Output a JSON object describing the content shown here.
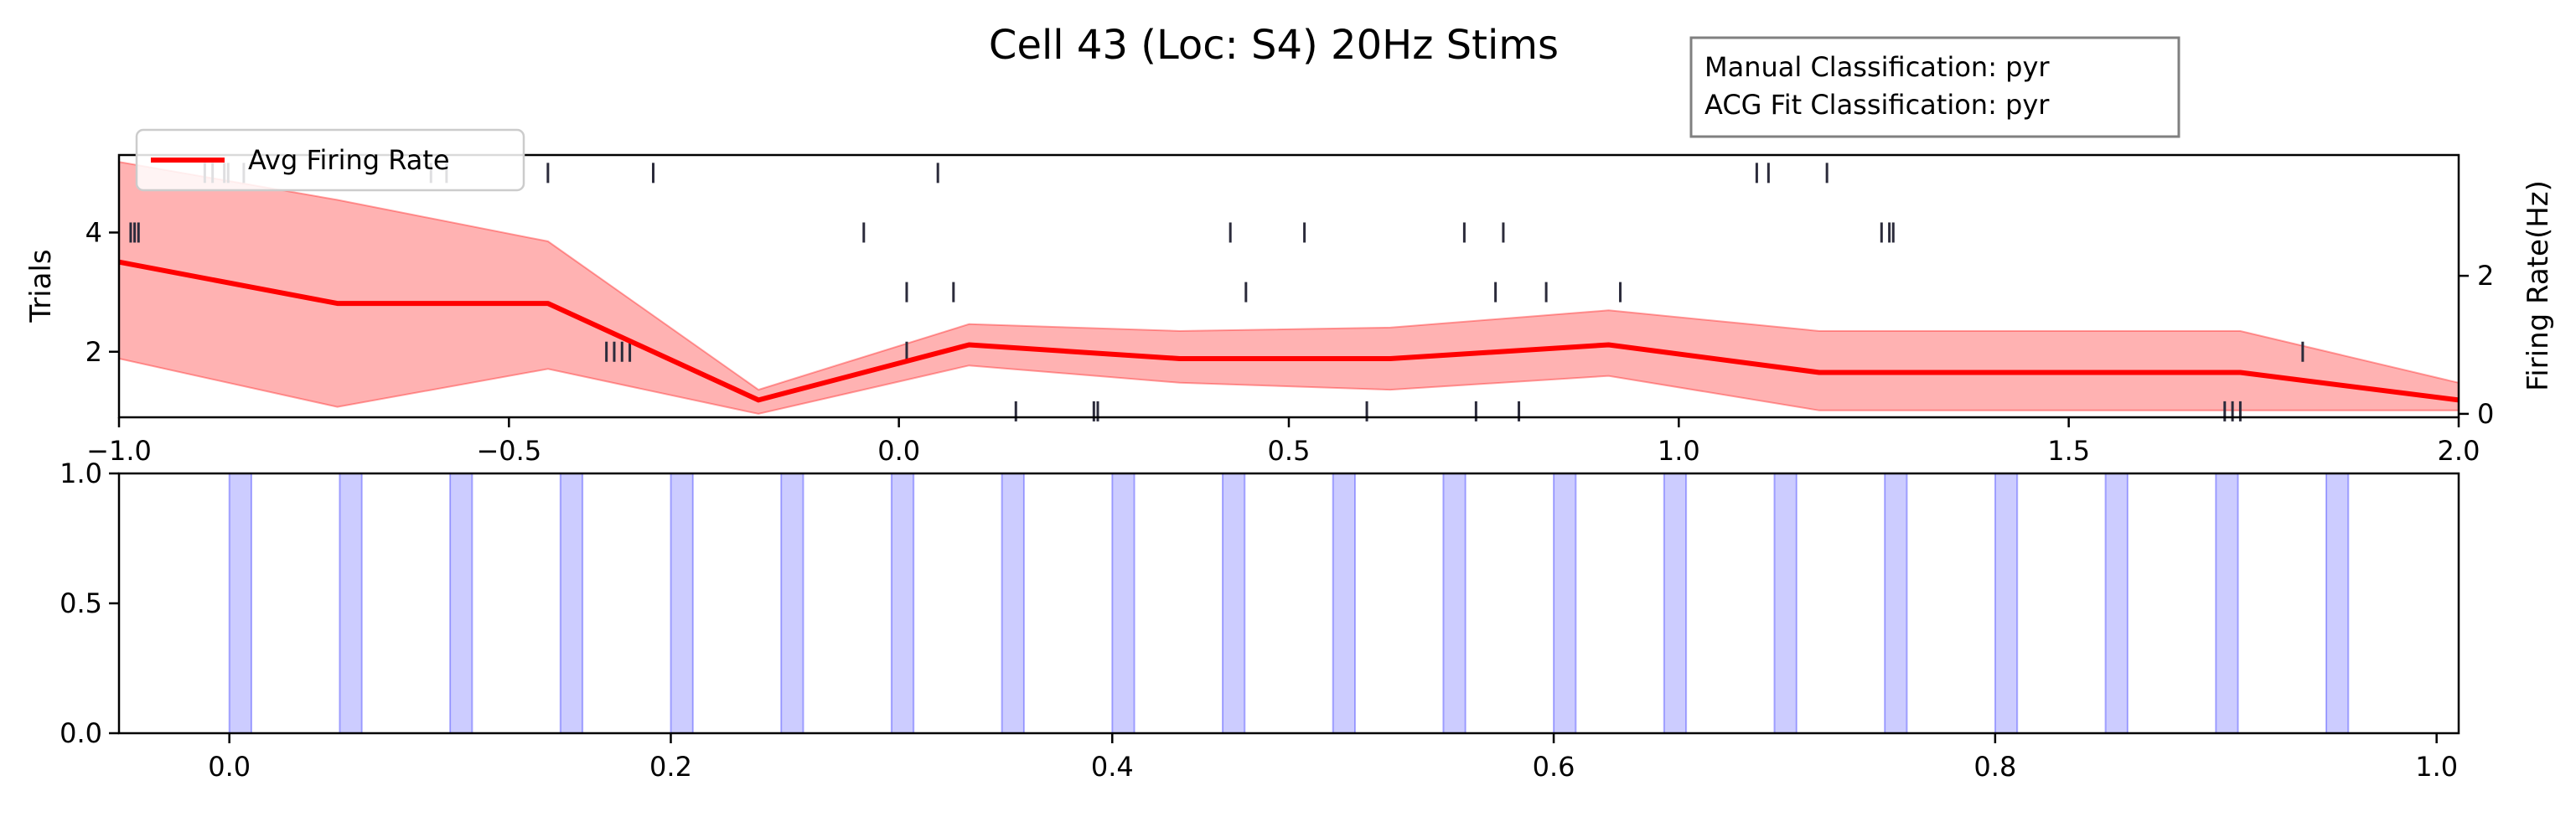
{
  "figure": {
    "title": "Cell 43 (Loc: S4) 20Hz Stims",
    "info_box": {
      "lines": [
        "Manual Classification: pyr",
        "ACG Fit Classification: pyr"
      ]
    }
  },
  "chart_data": [
    {
      "type": "line",
      "panel": "top",
      "title": "",
      "xlabel": "",
      "ylabel_left": "Trials",
      "ylabel_right": "Firing Rate(Hz)",
      "xlim": [
        -1.0,
        2.0
      ],
      "ylim_left": [
        0.9,
        5.3
      ],
      "ylim_right": [
        -0.05,
        3.75
      ],
      "x_ticks": [
        -1.0,
        -0.5,
        0.0,
        0.5,
        1.0,
        1.5,
        2.0
      ],
      "x_tick_labels": [
        "−1.0",
        "−0.5",
        "0.0",
        "0.5",
        "1.0",
        "1.5",
        "2.0"
      ],
      "y_ticks_left": [
        2,
        4
      ],
      "y_tick_labels_left": [
        "2",
        "4"
      ],
      "y_ticks_right": [
        0,
        2
      ],
      "y_tick_labels_right": [
        "0",
        "2"
      ],
      "legend": {
        "placement": "top-left",
        "entries": [
          {
            "label": "Avg Firing Rate",
            "color": "#ff0000"
          }
        ]
      },
      "rate_series": {
        "name": "Avg Firing Rate",
        "color": "#ff0000",
        "band_color": "#ff0000",
        "band_opacity": 0.3,
        "x": [
          -1.0,
          -0.72,
          -0.45,
          -0.18,
          0.09,
          0.36,
          0.63,
          0.91,
          1.18,
          1.45,
          1.72,
          2.0
        ],
        "mean": [
          2.2,
          1.6,
          1.6,
          0.2,
          1.0,
          0.8,
          0.8,
          1.0,
          0.6,
          0.6,
          0.6,
          0.2
        ],
        "upper": [
          3.65,
          3.1,
          2.5,
          0.35,
          1.3,
          1.2,
          1.25,
          1.5,
          1.2,
          1.2,
          1.2,
          0.45
        ],
        "lower": [
          0.8,
          0.1,
          0.65,
          0.0,
          0.7,
          0.45,
          0.35,
          0.55,
          0.05,
          0.05,
          0.05,
          0.05
        ]
      },
      "raster": {
        "color": "#2b2b3b",
        "trials": [
          {
            "trial": 1,
            "spikes": [
              0.15,
              0.25,
              0.255,
              0.6,
              0.74,
              0.795,
              1.7,
              1.71,
              1.72
            ]
          },
          {
            "trial": 2,
            "spikes": [
              -0.375,
              -0.365,
              -0.355,
              -0.345,
              0.01,
              1.8
            ]
          },
          {
            "trial": 3,
            "spikes": [
              0.01,
              0.07,
              0.445,
              0.765,
              0.83,
              0.925
            ]
          },
          {
            "trial": 4,
            "spikes": [
              -0.985,
              -0.98,
              -0.975,
              -0.045,
              0.425,
              0.52,
              0.725,
              0.775,
              1.26,
              1.27,
              1.275
            ]
          },
          {
            "trial": 5,
            "spikes": [
              -0.89,
              -0.88,
              -0.865,
              -0.86,
              -0.84,
              -0.6,
              -0.58,
              -0.45,
              -0.315,
              0.05,
              1.1,
              1.115,
              1.19
            ]
          }
        ]
      }
    },
    {
      "type": "bar",
      "panel": "bottom",
      "title": "",
      "xlabel": "",
      "ylabel": "",
      "xlim": [
        -0.05,
        1.01
      ],
      "ylim": [
        0.0,
        1.0
      ],
      "x_ticks": [
        0.0,
        0.2,
        0.4,
        0.6,
        0.8,
        1.0
      ],
      "x_tick_labels": [
        "0.0",
        "0.2",
        "0.4",
        "0.6",
        "0.8",
        "1.0"
      ],
      "y_ticks": [
        0.0,
        0.5,
        1.0
      ],
      "y_tick_labels": [
        "0.0",
        "0.5",
        "1.0"
      ],
      "stim_color": "#0000ff",
      "stim_opacity": 0.2,
      "stim_width": 0.01,
      "stim_onsets": [
        0.0,
        0.05,
        0.1,
        0.15,
        0.2,
        0.25,
        0.3,
        0.35,
        0.4,
        0.45,
        0.5,
        0.55,
        0.6,
        0.65,
        0.7,
        0.75,
        0.8,
        0.85,
        0.9,
        0.95
      ]
    }
  ]
}
